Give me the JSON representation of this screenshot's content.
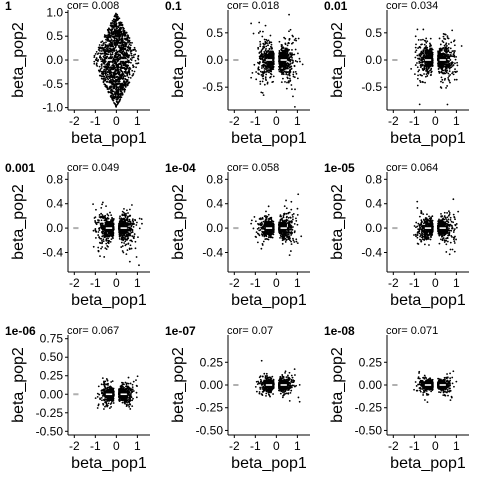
{
  "figure": {
    "type": "scatter-grid"
  },
  "chart_data": [
    {
      "type": "scatter",
      "tag": "1",
      "annotation": "cor= 0.008",
      "xlabel": "beta_pop1",
      "ylabel": "beta_pop2",
      "xlim": [
        -2.3,
        1.6
      ],
      "ylim": [
        -1.05,
        1.05
      ],
      "xticks": [
        -2,
        -1,
        0,
        1
      ],
      "yticks": [
        -1.0,
        -0.5,
        0.0,
        0.5,
        1.0
      ],
      "ytick_labels": [
        "-1.0",
        "-0.5",
        "0.0",
        "0.5",
        "1.0"
      ],
      "cloud": {
        "x_spread": 1.0,
        "y_spread": 1.0,
        "shape": "diamond"
      }
    },
    {
      "type": "scatter",
      "tag": "0.1",
      "annotation": "cor= 0.018",
      "xlabel": "beta_pop1",
      "ylabel": "beta_pop2",
      "xlim": [
        -2.3,
        1.6
      ],
      "ylim": [
        -0.92,
        0.92
      ],
      "xticks": [
        -2,
        -1,
        0,
        1
      ],
      "yticks": [
        -0.5,
        0.0,
        0.5
      ],
      "ytick_labels": [
        "-0.5",
        "0.0",
        "0.5"
      ],
      "cloud": {
        "x_spread": 1.1,
        "y_spread": 0.85,
        "shape": "bowtie"
      }
    },
    {
      "type": "scatter",
      "tag": "0.01",
      "annotation": "cor= 0.034",
      "xlabel": "beta_pop1",
      "ylabel": "beta_pop2",
      "xlim": [
        -2.3,
        1.6
      ],
      "ylim": [
        -0.92,
        0.92
      ],
      "xticks": [
        -2,
        -1,
        0,
        1
      ],
      "yticks": [
        -0.5,
        0.0,
        0.5
      ],
      "ytick_labels": [
        "-0.5",
        "0.0",
        "0.5"
      ],
      "cloud": {
        "x_spread": 1.1,
        "y_spread": 0.8,
        "shape": "bowtie"
      }
    },
    {
      "type": "scatter",
      "tag": "0.001",
      "annotation": "cor= 0.049",
      "xlabel": "beta_pop1",
      "ylabel": "beta_pop2",
      "xlim": [
        -2.3,
        1.6
      ],
      "ylim": [
        -0.72,
        0.92
      ],
      "xticks": [
        -2,
        -1,
        0,
        1
      ],
      "yticks": [
        -0.4,
        0.0,
        0.4,
        0.8
      ],
      "ytick_labels": [
        "-0.4",
        "0.0",
        "0.4",
        "0.8"
      ],
      "cloud": {
        "x_spread": 1.1,
        "y_spread": 0.6,
        "shape": "bowtie"
      }
    },
    {
      "type": "scatter",
      "tag": "1e-04",
      "annotation": "cor= 0.058",
      "xlabel": "beta_pop1",
      "ylabel": "beta_pop2",
      "xlim": [
        -2.3,
        1.6
      ],
      "ylim": [
        -0.72,
        0.92
      ],
      "xticks": [
        -2,
        -1,
        0,
        1
      ],
      "yticks": [
        -0.4,
        0.0,
        0.4,
        0.8
      ],
      "ytick_labels": [
        "-0.4",
        "0.0",
        "0.4",
        "0.8"
      ],
      "cloud": {
        "x_spread": 1.0,
        "y_spread": 0.5,
        "shape": "bowtie"
      }
    },
    {
      "type": "scatter",
      "tag": "1e-05",
      "annotation": "cor= 0.064",
      "xlabel": "beta_pop1",
      "ylabel": "beta_pop2",
      "xlim": [
        -2.3,
        1.6
      ],
      "ylim": [
        -0.72,
        0.92
      ],
      "xticks": [
        -2,
        -1,
        0,
        1
      ],
      "yticks": [
        -0.4,
        0.0,
        0.4,
        0.8
      ],
      "ytick_labels": [
        "-0.4",
        "0.0",
        "0.4",
        "0.8"
      ],
      "cloud": {
        "x_spread": 1.0,
        "y_spread": 0.5,
        "shape": "bowtie"
      }
    },
    {
      "type": "scatter",
      "tag": "1e-06",
      "annotation": "cor= 0.067",
      "xlabel": "beta_pop1",
      "ylabel": "beta_pop2",
      "xlim": [
        -2.3,
        1.6
      ],
      "ylim": [
        -0.55,
        0.8
      ],
      "xticks": [
        -2,
        -1,
        0,
        1
      ],
      "yticks": [
        -0.5,
        -0.25,
        0.0,
        0.25,
        0.5,
        0.75
      ],
      "ytick_labels": [
        "-0.50",
        "-0.25",
        "0.00",
        "0.25",
        "0.50",
        "0.75"
      ],
      "cloud": {
        "x_spread": 0.9,
        "y_spread": 0.4,
        "shape": "bowtie"
      }
    },
    {
      "type": "scatter",
      "tag": "1e-07",
      "annotation": "cor= 0.07",
      "xlabel": "beta_pop1",
      "ylabel": "beta_pop2",
      "xlim": [
        -2.3,
        1.6
      ],
      "ylim": [
        -0.55,
        0.55
      ],
      "xticks": [
        -2,
        -1,
        0,
        1
      ],
      "yticks": [
        -0.5,
        -0.25,
        0.0,
        0.25
      ],
      "ytick_labels": [
        "-0.50",
        "-0.25",
        "0.00",
        "0.25"
      ],
      "cloud": {
        "x_spread": 0.9,
        "y_spread": 0.4,
        "shape": "bowtie"
      }
    },
    {
      "type": "scatter",
      "tag": "1e-08",
      "annotation": "cor= 0.071",
      "xlabel": "beta_pop1",
      "ylabel": "beta_pop2",
      "xlim": [
        -2.3,
        1.6
      ],
      "ylim": [
        -0.55,
        0.55
      ],
      "xticks": [
        -2,
        -1,
        0,
        1
      ],
      "yticks": [
        -0.5,
        -0.25,
        0.0,
        0.25
      ],
      "ytick_labels": [
        "-0.50",
        "-0.25",
        "0.00",
        "0.25"
      ],
      "cloud": {
        "x_spread": 0.9,
        "y_spread": 0.35,
        "shape": "bowtie"
      }
    }
  ],
  "colors": {
    "points": "#000000",
    "outlier_segment": "#b0b0b0",
    "median_dash": "#ffffff",
    "axis": "#000000"
  }
}
